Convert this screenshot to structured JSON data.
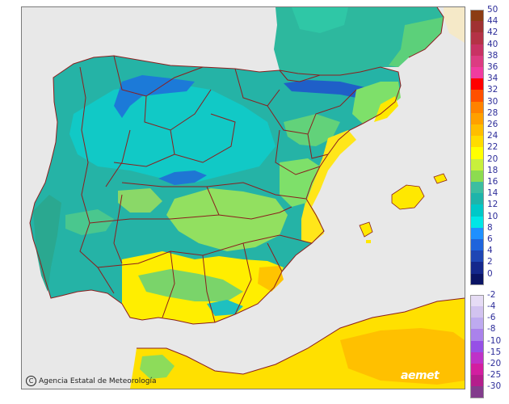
{
  "credit": {
    "symbol": "C",
    "text": "Agencia Estatal de Meteorología"
  },
  "logo": "aemet",
  "legend": {
    "positive": [
      {
        "label": "50",
        "color": "#8c3c14"
      },
      {
        "label": "44",
        "color": "#a03232"
      },
      {
        "label": "42",
        "color": "#b43246"
      },
      {
        "label": "40",
        "color": "#c83264"
      },
      {
        "label": "38",
        "color": "#dc3c82"
      },
      {
        "label": "36",
        "color": "#f03ca0"
      },
      {
        "label": "34",
        "color": "#ff0000"
      },
      {
        "label": "32",
        "color": "#ff5000"
      },
      {
        "label": "30",
        "color": "#ff8200"
      },
      {
        "label": "28",
        "color": "#ffa000"
      },
      {
        "label": "26",
        "color": "#ffbe00"
      },
      {
        "label": "24",
        "color": "#ffdc00"
      },
      {
        "label": "22",
        "color": "#ffff00"
      },
      {
        "label": "20",
        "color": "#c8f03c"
      },
      {
        "label": "18",
        "color": "#8cdc50"
      },
      {
        "label": "16",
        "color": "#3cbea0"
      },
      {
        "label": "14",
        "color": "#1eb4aa"
      },
      {
        "label": "12",
        "color": "#00c8c8"
      },
      {
        "label": "10",
        "color": "#00e6e6"
      },
      {
        "label": "8",
        "color": "#1e90ff"
      },
      {
        "label": "6",
        "color": "#1e64dc"
      },
      {
        "label": "4",
        "color": "#1e46b4"
      },
      {
        "label": "2",
        "color": "#14288c"
      },
      {
        "label": "0",
        "color": "#0a1464"
      }
    ],
    "negative": [
      {
        "label": "-2",
        "color": "#e6dcf5"
      },
      {
        "label": "-4",
        "color": "#d2c3f0"
      },
      {
        "label": "-6",
        "color": "#beaaf0"
      },
      {
        "label": "-8",
        "color": "#aa82eb"
      },
      {
        "label": "-10",
        "color": "#9650e6"
      },
      {
        "label": "-15",
        "color": "#be32c8"
      },
      {
        "label": "-20",
        "color": "#d21ea0"
      },
      {
        "label": "-25",
        "color": "#b41e8c"
      },
      {
        "label": "-30",
        "color": "#823c8c"
      }
    ]
  }
}
